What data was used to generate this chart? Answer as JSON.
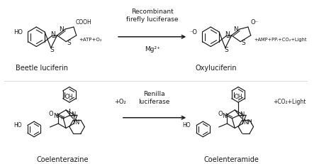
{
  "background_color": "#ffffff",
  "top_reaction": {
    "reactant_name": "Beetle luciferin",
    "arrow_label_top": "Recombinant\nfirefly luciferase",
    "arrow_label_bottom": "Mg²⁺",
    "product_name": "Oxyluciferin",
    "product_formula": "+AMP+PPᵢ+CO₂+Light"
  },
  "bottom_reaction": {
    "reactant_name": "Coelenterazine",
    "reactant_formula": "+O₂",
    "arrow_label_top": "Renilla\nluciferase",
    "product_name": "Coelenteramide",
    "product_formula": "+CO₂+Light"
  },
  "figsize": [
    4.5,
    2.31
  ],
  "dpi": 100
}
